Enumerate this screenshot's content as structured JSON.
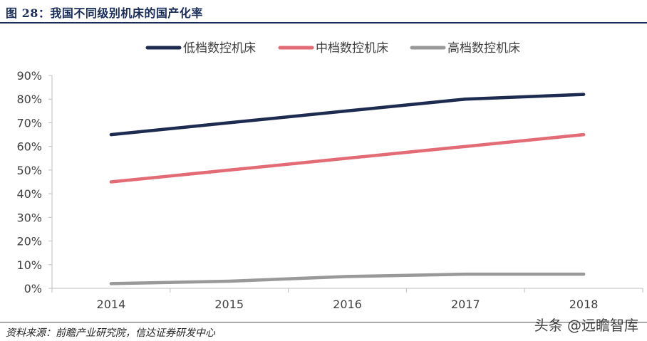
{
  "figure": {
    "title": "图 28：我国不同级别机床的国产化率",
    "source": "资料来源：前瞻产业研究院，信达证券研发中心",
    "watermark": "头条 @远瞻智库"
  },
  "chart_data": {
    "type": "line",
    "x": [
      "2014",
      "2015",
      "2016",
      "2017",
      "2018"
    ],
    "ylim": [
      0,
      90
    ],
    "yticks": [
      "0%",
      "10%",
      "20%",
      "30%",
      "40%",
      "50%",
      "60%",
      "70%",
      "80%",
      "90%"
    ],
    "ytick_values": [
      0,
      10,
      20,
      30,
      40,
      50,
      60,
      70,
      80,
      90
    ],
    "legend_position": "top-center",
    "grid": false,
    "series": [
      {
        "name": "低档数控机床",
        "color": "#1c2b4f",
        "values": [
          65,
          70,
          75,
          80,
          82
        ]
      },
      {
        "name": "中档数控机床",
        "color": "#e36b75",
        "values": [
          45,
          50,
          55,
          60,
          65
        ]
      },
      {
        "name": "高档数控机床",
        "color": "#999999",
        "values": [
          2,
          3,
          5,
          6,
          6
        ]
      }
    ]
  }
}
